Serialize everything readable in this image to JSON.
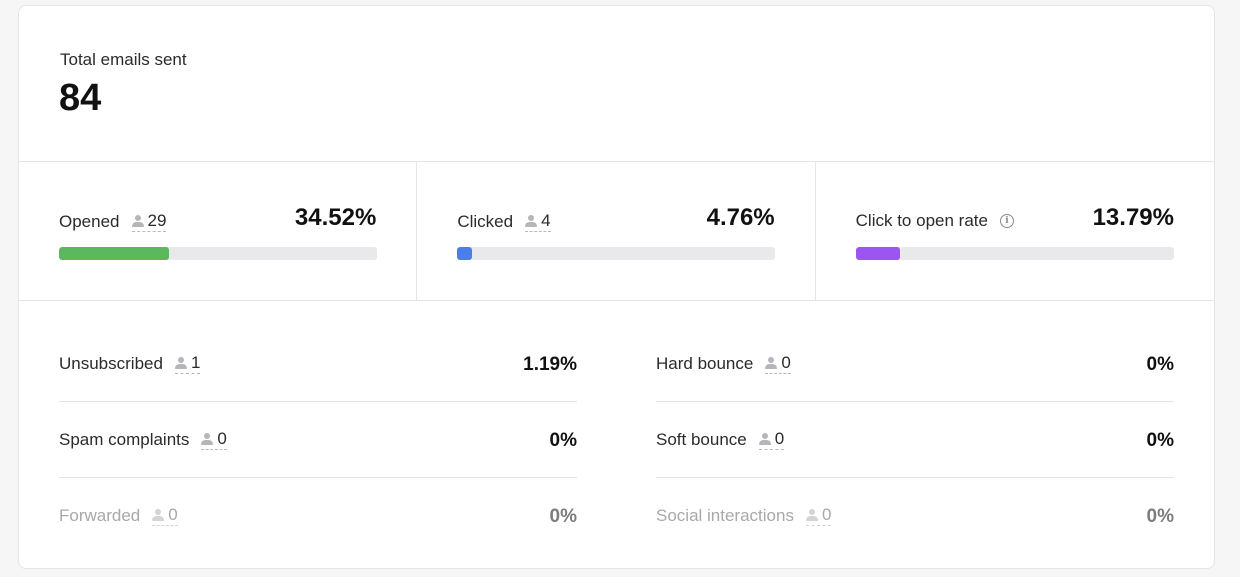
{
  "total": {
    "label": "Total emails sent",
    "value": "84"
  },
  "metrics": [
    {
      "label": "Opened",
      "count": "29",
      "percent": "34.52%",
      "fill": 0.3452,
      "color": "#5cb85c",
      "has_count": true,
      "has_info": false
    },
    {
      "label": "Clicked",
      "count": "4",
      "percent": "4.76%",
      "fill": 0.0476,
      "color": "#4a7ee8",
      "has_count": true,
      "has_info": false
    },
    {
      "label": "Click to open rate",
      "count": "",
      "percent": "13.79%",
      "fill": 0.1379,
      "color": "#9a55f2",
      "has_count": false,
      "has_info": true
    }
  ],
  "left_rows": [
    {
      "label": "Unsubscribed",
      "count": "1",
      "percent": "1.19%",
      "muted": false
    },
    {
      "label": "Spam complaints",
      "count": "0",
      "percent": "0%",
      "muted": false
    },
    {
      "label": "Forwarded",
      "count": "0",
      "percent": "0%",
      "muted": true
    }
  ],
  "right_rows": [
    {
      "label": "Hard bounce",
      "count": "0",
      "percent": "0%",
      "muted": false
    },
    {
      "label": "Soft bounce",
      "count": "0",
      "percent": "0%",
      "muted": false
    },
    {
      "label": "Social interactions",
      "count": "0",
      "percent": "0%",
      "muted": true
    }
  ],
  "icons": {
    "count_icon": "person-icon",
    "info_icon": "info-icon"
  }
}
